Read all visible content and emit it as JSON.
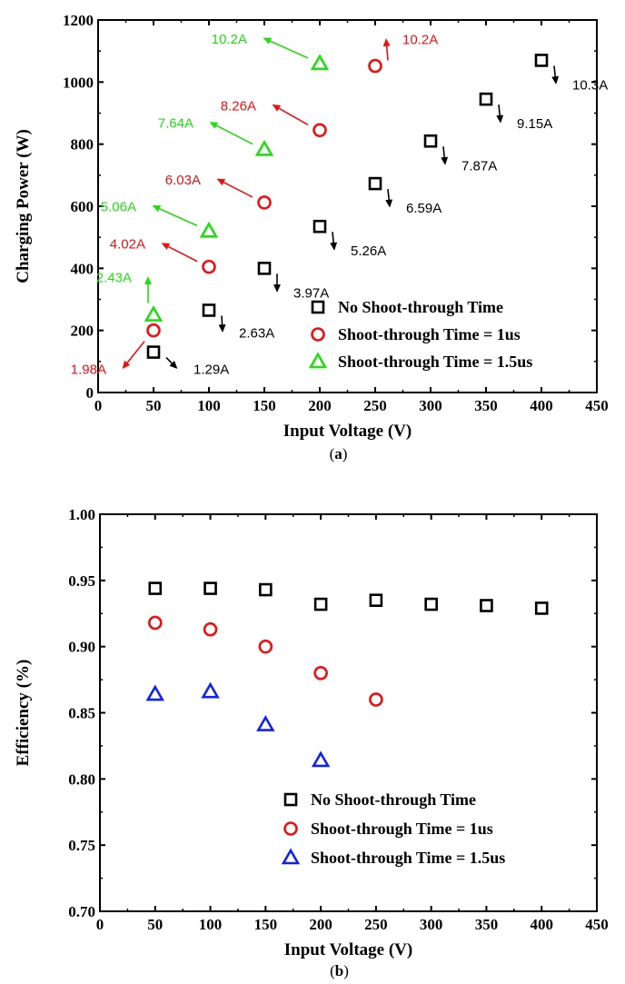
{
  "chart_data": [
    {
      "type": "scatter",
      "panel_label": "a",
      "xlabel": "Input Voltage (V)",
      "ylabel": "Charging Power (W)",
      "xlim": [
        0,
        450
      ],
      "ylim": [
        0,
        1200
      ],
      "xticks": [
        0,
        50,
        100,
        150,
        200,
        250,
        300,
        350,
        400,
        450
      ],
      "yticks": [
        0,
        200,
        400,
        600,
        800,
        1000,
        1200
      ],
      "grid": false,
      "legend_position": "bottom-right",
      "series": [
        {
          "name": "No Shoot-through Time",
          "marker": "square",
          "color": "#000000",
          "points": [
            {
              "x": 50,
              "y": 130,
              "label": "1.29A"
            },
            {
              "x": 100,
              "y": 265,
              "label": "2.63A"
            },
            {
              "x": 150,
              "y": 400,
              "label": "3.97A"
            },
            {
              "x": 200,
              "y": 535,
              "label": "5.26A"
            },
            {
              "x": 250,
              "y": 673,
              "label": "6.59A"
            },
            {
              "x": 300,
              "y": 810,
              "label": "7.87A"
            },
            {
              "x": 350,
              "y": 945,
              "label": "9.15A"
            },
            {
              "x": 400,
              "y": 1070,
              "label": "10.3A"
            }
          ]
        },
        {
          "name": "Shoot-through Time = 1us",
          "marker": "circle",
          "color": "#ee1111",
          "points": [
            {
              "x": 50,
              "y": 200,
              "label": "1.98A"
            },
            {
              "x": 100,
              "y": 405,
              "label": "4.02A"
            },
            {
              "x": 150,
              "y": 612,
              "label": "6.03A"
            },
            {
              "x": 200,
              "y": 845,
              "label": "8.26A"
            },
            {
              "x": 250,
              "y": 1052,
              "label": "10.2A"
            }
          ]
        },
        {
          "name": "Shoot-through Time = 1.5us",
          "marker": "triangle",
          "color": "#22dd11",
          "points": [
            {
              "x": 50,
              "y": 250,
              "label": "2.43A"
            },
            {
              "x": 100,
              "y": 520,
              "label": "5.06A"
            },
            {
              "x": 150,
              "y": 783,
              "label": "7.64A"
            },
            {
              "x": 200,
              "y": 1060,
              "label": "10.2A"
            }
          ]
        }
      ]
    },
    {
      "type": "scatter",
      "panel_label": "b",
      "xlabel": "Input Voltage (V)",
      "ylabel": "Efficiency (%)",
      "xlim": [
        0,
        450
      ],
      "ylim": [
        0.7,
        1.0
      ],
      "xticks": [
        0,
        50,
        100,
        150,
        200,
        250,
        300,
        350,
        400,
        450
      ],
      "yticks": [
        "0.70",
        "0.75",
        "0.80",
        "0.85",
        "0.90",
        "0.95",
        "1.00"
      ],
      "grid": false,
      "legend_position": "bottom-right",
      "series": [
        {
          "name": "No Shoot-through Time",
          "marker": "square",
          "color": "#000000",
          "points": [
            {
              "x": 50,
              "y": 0.944
            },
            {
              "x": 100,
              "y": 0.944
            },
            {
              "x": 150,
              "y": 0.943
            },
            {
              "x": 200,
              "y": 0.932
            },
            {
              "x": 250,
              "y": 0.935
            },
            {
              "x": 300,
              "y": 0.932
            },
            {
              "x": 350,
              "y": 0.931
            },
            {
              "x": 400,
              "y": 0.929
            }
          ]
        },
        {
          "name": "Shoot-through Time = 1us",
          "marker": "circle",
          "color": "#ee1111",
          "points": [
            {
              "x": 50,
              "y": 0.918
            },
            {
              "x": 100,
              "y": 0.913
            },
            {
              "x": 150,
              "y": 0.9
            },
            {
              "x": 200,
              "y": 0.88
            },
            {
              "x": 250,
              "y": 0.86
            }
          ]
        },
        {
          "name": "Shoot-through Time = 1.5us",
          "marker": "triangle",
          "color": "#1122ee",
          "points": [
            {
              "x": 50,
              "y": 0.864
            },
            {
              "x": 100,
              "y": 0.866
            },
            {
              "x": 150,
              "y": 0.841
            },
            {
              "x": 200,
              "y": 0.814
            }
          ]
        }
      ]
    }
  ]
}
